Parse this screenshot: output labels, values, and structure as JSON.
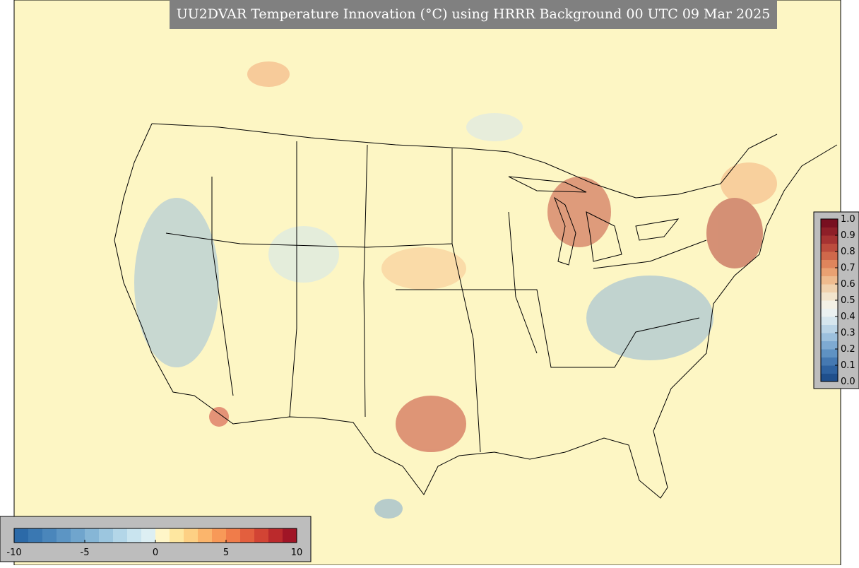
{
  "header": {
    "title": "UU2DVAR Temperature Innovation (°C) using HRRR Background 00 UTC 09 Mar 2025"
  },
  "colorbars": [
    {
      "name": "innovation",
      "orientation": "horizontal",
      "lim": [
        -10,
        10
      ],
      "ticks": [
        -10,
        -5,
        0,
        5,
        10
      ],
      "colors": [
        "#2c6aa8",
        "#3a78b2",
        "#4a86bb",
        "#5c95c4",
        "#70a5cd",
        "#86b6d6",
        "#9cc6df",
        "#b3d6e8",
        "#c9e4ef",
        "#ddeff3",
        "#fff6c8",
        "#fee7a0",
        "#fdd084",
        "#fbb56c",
        "#f89958",
        "#f07c4a",
        "#e35f3e",
        "#d24434",
        "#bb2a2c",
        "#a01526"
      ]
    },
    {
      "name": "fraction",
      "orientation": "vertical",
      "lim": [
        0,
        1
      ],
      "ticks": [
        {
          "value": 0,
          "label": "0.0"
        },
        {
          "value": 0.1,
          "label": "0.1"
        },
        {
          "value": 0.2,
          "label": "0.2"
        },
        {
          "value": 0.3,
          "label": "0.3"
        },
        {
          "value": 0.4,
          "label": "0.4"
        },
        {
          "value": 0.5,
          "label": "0.5"
        },
        {
          "value": 0.6,
          "label": "0.6"
        },
        {
          "value": 0.7,
          "label": "0.7"
        },
        {
          "value": 0.8,
          "label": "0.8"
        },
        {
          "value": 0.9,
          "label": "0.9"
        },
        {
          "value": 1,
          "label": "1.0"
        }
      ],
      "colors": [
        "#1f4f8c",
        "#2e62a0",
        "#4579b2",
        "#5f92c3",
        "#7eaad2",
        "#9cc0dd",
        "#bad4e6",
        "#d6e6ee",
        "#ebf1f1",
        "#f4f1e6",
        "#f2e5cd",
        "#f0d2ae",
        "#eebb8e",
        "#e9a172",
        "#df855c",
        "#d0684b",
        "#bd4c3d",
        "#a63332",
        "#8e1f28",
        "#780f20"
      ]
    }
  ]
}
